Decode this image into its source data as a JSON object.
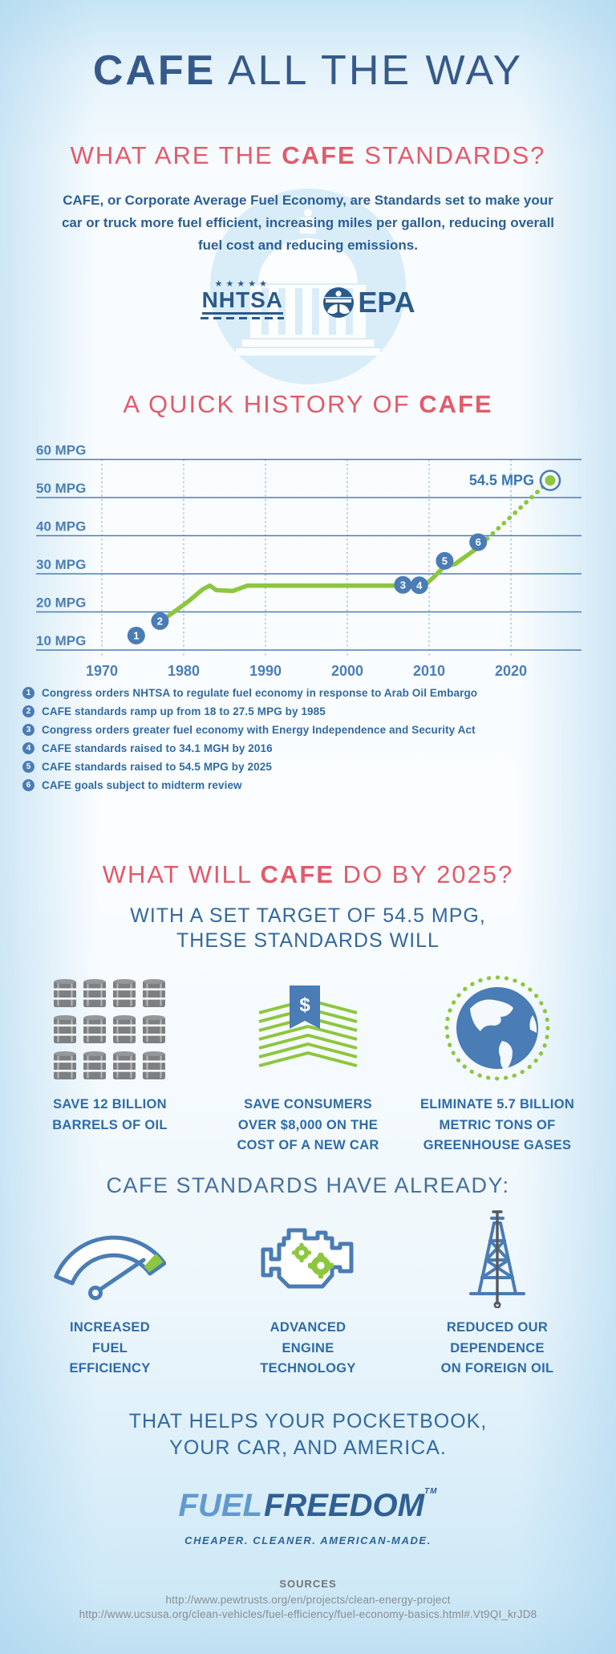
{
  "page": {
    "title_parts": [
      {
        "t": "CAFE",
        "b": true
      },
      {
        "t": " ALL THE WAY",
        "b": false
      }
    ]
  },
  "intro": {
    "heading_parts": [
      {
        "t": "WHAT ARE THE ",
        "b": false
      },
      {
        "t": "CAFE",
        "b": true
      },
      {
        "t": " STANDARDS?",
        "b": false
      }
    ],
    "body": "CAFE, or Corporate Average Fuel Economy, are Standards set to make your car or truck more fuel efficient, increasing miles per gallon, reducing overall fuel cost and reducing emissions.",
    "logos": {
      "nhtsa_stars": "★★★★★",
      "nhtsa": "NHTSA",
      "epa": "EPA"
    }
  },
  "history": {
    "heading_parts": [
      {
        "t": "A QUICK HISTORY OF ",
        "b": false
      },
      {
        "t": "CAFE",
        "b": true
      }
    ],
    "events": [
      {
        "num": "1",
        "parts": [
          {
            "t": "Congress orders NHTSA to regulate fuel economy in response to Arab Oil Embargo",
            "b": false
          }
        ]
      },
      {
        "num": "2",
        "parts": [
          {
            "t": "CAFE standards ramp up from ",
            "b": false
          },
          {
            "t": "18",
            "b": true
          },
          {
            "t": " to ",
            "b": false
          },
          {
            "t": "27.5",
            "b": true
          },
          {
            "t": " MPG by 1985",
            "b": false
          }
        ]
      },
      {
        "num": "3",
        "parts": [
          {
            "t": "Congress orders greater fuel economy with Energy Independence and Security Act",
            "b": false
          }
        ]
      },
      {
        "num": "4",
        "parts": [
          {
            "t": "CAFE standards raised to ",
            "b": false
          },
          {
            "t": "34.1",
            "b": true
          },
          {
            "t": " MGH by 2016",
            "b": false
          }
        ]
      },
      {
        "num": "5",
        "parts": [
          {
            "t": "CAFE standards raised to ",
            "b": false
          },
          {
            "t": "54.5",
            "b": true
          },
          {
            "t": " MPG by 2025",
            "b": false
          }
        ]
      },
      {
        "num": "6",
        "parts": [
          {
            "t": "CAFE goals subject to midterm review",
            "b": false
          }
        ]
      }
    ]
  },
  "chart_data": {
    "type": "line",
    "title": "A QUICK HISTORY OF CAFE",
    "ylabel_suffix": " MPG",
    "y_ticks": [
      60,
      50,
      40,
      30,
      20,
      10
    ],
    "x_ticks": [
      1970,
      1980,
      1990,
      2000,
      2010,
      2020
    ],
    "x_range": [
      1962,
      2028
    ],
    "y_range": [
      5,
      62
    ],
    "grid": true,
    "line": [
      [
        1977.4,
        17.8
      ],
      [
        1979,
        20.3
      ],
      [
        1980.6,
        22.8
      ],
      [
        1982.3,
        25.9
      ],
      [
        1983.2,
        26.9
      ],
      [
        1984,
        25.7
      ],
      [
        1986,
        25.5
      ],
      [
        1987.8,
        26.9
      ],
      [
        2009.4,
        26.9
      ],
      [
        2010.5,
        29
      ],
      [
        2011.8,
        31.8
      ],
      [
        2013.2,
        32.6
      ],
      [
        2015.8,
        36.6
      ]
    ],
    "projection_dotted": [
      [
        2016.4,
        37.8
      ],
      [
        2024,
        53
      ]
    ],
    "target_point": {
      "year": 2024.8,
      "mpg": 54.5,
      "label": "54.5 MPG"
    },
    "markers": [
      {
        "n": "1",
        "year": 1974.2,
        "mpg": 13.8
      },
      {
        "n": "2",
        "year": 1977.1,
        "mpg": 17.6
      },
      {
        "n": "3",
        "year": 2006.8,
        "mpg": 27.1
      },
      {
        "n": "4",
        "year": 2008.8,
        "mpg": 27.0
      },
      {
        "n": "5",
        "year": 2011.9,
        "mpg": 33.4
      },
      {
        "n": "6",
        "year": 2016.0,
        "mpg": 38.3
      }
    ],
    "line_color": "#8dc63f",
    "marker_color": "#4a7cb5",
    "grid_color": "#4a7fb8",
    "label_color": "#4a7fb8"
  },
  "future": {
    "heading_parts": [
      {
        "t": "WHAT WILL ",
        "b": false
      },
      {
        "t": "CAFE",
        "b": true
      },
      {
        "t": " DO BY 2025?",
        "b": false
      }
    ],
    "subtitle_lines": [
      "WITH A SET TARGET OF 54.5 MPG,",
      "THESE STANDARDS WILL"
    ],
    "benefits": [
      {
        "icon": "oil-barrels",
        "barrels": {
          "count": 12,
          "per_row": 4
        },
        "lines": [
          "SAVE 12 BILLION",
          "BARRELS OF OIL"
        ]
      },
      {
        "icon": "money-stack",
        "lines": [
          "SAVE CONSUMERS",
          "OVER $8,000 ON THE",
          "COST OF A NEW CAR"
        ]
      },
      {
        "icon": "globe",
        "lines": [
          "ELIMINATE 5.7 BILLION",
          "METRIC TONS OF",
          "GREENHOUSE GASES"
        ]
      }
    ]
  },
  "already": {
    "heading": "CAFE STANDARDS HAVE ALREADY:",
    "achievements": [
      {
        "icon": "fuel-gauge",
        "lines": [
          "INCREASED",
          "FUEL",
          "EFFICIENCY"
        ]
      },
      {
        "icon": "engine",
        "lines": [
          "ADVANCED",
          "ENGINE",
          "TECHNOLOGY"
        ]
      },
      {
        "icon": "oil-derrick",
        "lines": [
          "REDUCED OUR",
          "DEPENDENCE",
          "ON FOREIGN OIL"
        ]
      }
    ],
    "closing_lines": [
      "THAT HELPS YOUR POCKETBOOK,",
      "YOUR CAR, AND AMERICA."
    ]
  },
  "footer": {
    "logo": {
      "fuel": "FUEL",
      "freedom": "FREEDOM",
      "tm": "TM",
      "tagline": "CHEAPER. CLEANER. AMERICAN-MADE."
    },
    "sources_label": "SOURCES",
    "sources": [
      "http://www.pewtrusts.org/en/projects/clean-energy-project",
      "http://www.ucsusa.org/clean-vehicles/fuel-efficiency/fuel-economy-basics.html#.Vt9QI_krJD8"
    ]
  },
  "colors": {
    "title_blue": "#35598a",
    "pink": "#e25b6b",
    "body_blue": "#2c5f95",
    "green": "#8dc63f",
    "badge_blue": "#4a7cb5",
    "logo_dark_blue": "#2b5a8c",
    "logo_light_blue": "#6199d1",
    "gray": "#808285"
  }
}
